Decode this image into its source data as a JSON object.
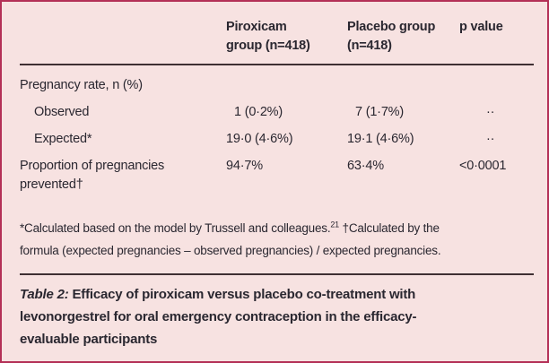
{
  "colors": {
    "background": "#f7e2e1",
    "border": "#b43057",
    "rule": "#3f2f33",
    "text": "#2a2730"
  },
  "table": {
    "header": {
      "piroxicam_lines": [
        "Piroxicam",
        "group (n=418)"
      ],
      "placebo_lines": [
        "Placebo group",
        "(n=418)"
      ],
      "p_value": "p value"
    },
    "rows": [
      {
        "label": "Pregnancy rate, n (%)",
        "piroxicam": "",
        "placebo": "",
        "p": ""
      },
      {
        "label": "Observed",
        "piroxicam": "1 (0·2%)",
        "placebo": "7 (1·7%)",
        "p": "··"
      },
      {
        "label": "Expected*",
        "piroxicam": "19·0 (4·6%)",
        "placebo": "19·1 (4·6%)",
        "p": "··"
      },
      {
        "label": "Proportion of pregnancies prevented†",
        "piroxicam": "94·7%",
        "placebo": "63·4%",
        "p": "<0·0001"
      }
    ]
  },
  "footnote": {
    "line1_pre": "*Calculated based on the model by Trussell and colleagues.",
    "ref": "21",
    "line1_post": " †Calculated by the",
    "line2": "formula (expected pregnancies – observed pregnancies) / expected pregnancies."
  },
  "caption": {
    "label": "Table 2:",
    "line1": "Efficacy of piroxicam versus placebo co-treatment with",
    "line2": "levonorgestrel for oral emergency contraception in the efficacy-",
    "line3": "evaluable participants"
  }
}
